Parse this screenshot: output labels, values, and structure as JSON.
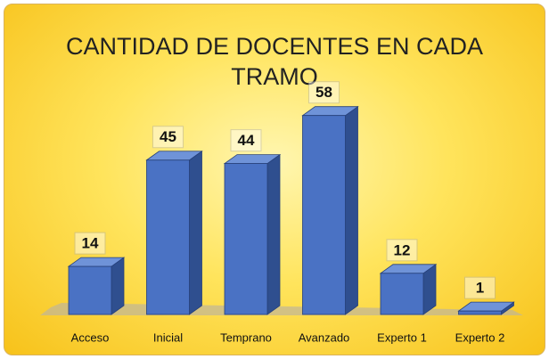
{
  "chart_data": {
    "type": "bar3d",
    "title": "CANTIDAD DE DOCENTES EN CADA TRAMO",
    "categories": [
      "Acceso",
      "Inicial",
      "Temprano",
      "Avanzado",
      "Experto 1",
      "Experto 2"
    ],
    "values": [
      14,
      45,
      44,
      58,
      12,
      1
    ],
    "color": "#4a72c4"
  }
}
